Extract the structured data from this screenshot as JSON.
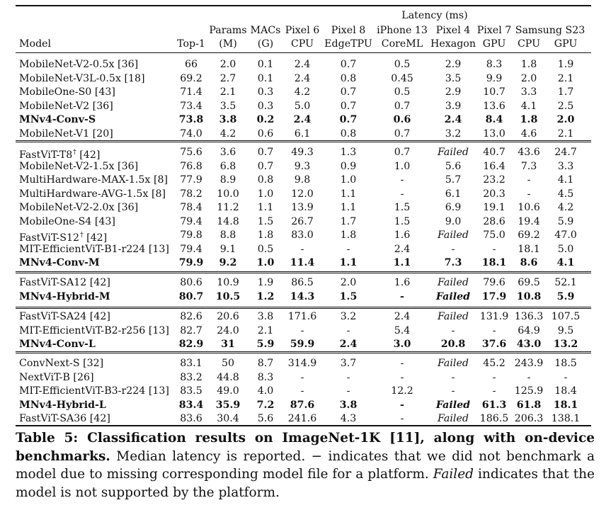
{
  "table": {
    "header": {
      "latency_group": "Latency (ms)",
      "top": {
        "params": "Params",
        "macs": "MACs",
        "pixel6": "Pixel 6",
        "pixel8": "Pixel 8",
        "iphone13": "iPhone 13",
        "pixel4": "Pixel 4",
        "pixel7": "Pixel 7",
        "samsung": "Samsung S23"
      },
      "sub": {
        "model": "Model",
        "top1": "Top-1",
        "params_unit": "(M)",
        "macs_unit": "(G)",
        "cpu": "CPU",
        "edgetpu": "EdgeTPU",
        "coreml": "CoreML",
        "hexagon": "Hexagon",
        "gpu_p7": "GPU",
        "cpu_s23": "CPU",
        "gpu_s23": "GPU"
      }
    },
    "rows": [
      {
        "model": "MobileNet-V2-0.5x [36]",
        "cells": [
          "66",
          "2.0",
          "0.1",
          "2.4",
          "0.7",
          "0.5",
          "2.9",
          "8.3",
          "1.8",
          "1.9"
        ]
      },
      {
        "model": "MobileNet-V3L-0.5x [18]",
        "cells": [
          "69.2",
          "2.7",
          "0.1",
          "2.4",
          "0.8",
          "0.45",
          "3.5",
          "9.9",
          "2.0",
          "2.1"
        ]
      },
      {
        "model": "MobileOne-S0 [43]",
        "cells": [
          "71.4",
          "2.1",
          "0.3",
          "4.2",
          "0.7",
          "0.5",
          "2.9",
          "10.7",
          "3.3",
          "1.7"
        ]
      },
      {
        "model": "MobileNet-V2 [36]",
        "cells": [
          "73.4",
          "3.5",
          "0.3",
          "5.0",
          "0.7",
          "0.7",
          "3.9",
          "13.6",
          "4.1",
          "2.5"
        ]
      },
      {
        "model": "MNv4-Conv-S",
        "bold": true,
        "cells": [
          "73.8",
          "3.8",
          "0.2",
          "2.4",
          "0.7",
          "0.6",
          "2.4",
          "8.4",
          "1.8",
          "2.0"
        ]
      },
      {
        "model": "MobileNet-V1 [20]",
        "cells": [
          "74.0",
          "4.2",
          "0.6",
          "6.1",
          "0.8",
          "0.7",
          "3.2",
          "13.0",
          "4.6",
          "2.1"
        ]
      },
      {
        "model": "FastViT-T8",
        "dagger": "†",
        "ref": " [42]",
        "cells": [
          "75.6",
          "3.6",
          "0.7",
          "49.3",
          "1.3",
          "0.7",
          "Failed",
          "40.7",
          "43.6",
          "24.7"
        ]
      },
      {
        "model": "MobileNet-V2-1.5x [36]",
        "cells": [
          "76.8",
          "6.8",
          "0.7",
          "9.3",
          "0.9",
          "1.0",
          "5.6",
          "16.4",
          "7.3",
          "3.3"
        ]
      },
      {
        "model": "MultiHardware-MAX-1.5x [8]",
        "cells": [
          "77.9",
          "8.9",
          "0.8",
          "9.8",
          "1.0",
          "-",
          "5.7",
          "23.2",
          "-",
          "4.1"
        ]
      },
      {
        "model": "MultiHardware-AVG-1.5x [8]",
        "cells": [
          "78.2",
          "10.0",
          "1.0",
          "12.0",
          "1.1",
          "-",
          "6.1",
          "20.3",
          "-",
          "4.5"
        ]
      },
      {
        "model": "MobileNet-V2-2.0x [36]",
        "cells": [
          "78.4",
          "11.2",
          "1.1",
          "13.9",
          "1.1",
          "1.5",
          "6.9",
          "19.1",
          "10.6",
          "4.2"
        ]
      },
      {
        "model": "MobileOne-S4 [43]",
        "cells": [
          "79.4",
          "14.8",
          "1.5",
          "26.7",
          "1.7",
          "1.5",
          "9.0",
          "28.6",
          "19.4",
          "5.9"
        ]
      },
      {
        "model": "FastViT-S12",
        "dagger": "†",
        "ref": " [42]",
        "cells": [
          "79.8",
          "8.8",
          "1.8",
          "83.0",
          "1.8",
          "1.6",
          "Failed",
          "75.0",
          "69.2",
          "47.0"
        ]
      },
      {
        "model": "MIT-EfficientViT-B1-r224 [13]",
        "cells": [
          "79.4",
          "9.1",
          "0.5",
          "-",
          "-",
          "2.4",
          "-",
          "-",
          "18.1",
          "5.0"
        ]
      },
      {
        "model": "MNv4-Conv-M",
        "bold": true,
        "cells": [
          "79.9",
          "9.2",
          "1.0",
          "11.4",
          "1.1",
          "1.1",
          "7.3",
          "18.1",
          "8.6",
          "4.1"
        ]
      },
      {
        "model": "FastViT-SA12 [42]",
        "cells": [
          "80.6",
          "10.9",
          "1.9",
          "86.5",
          "2.0",
          "1.6",
          "Failed",
          "79.6",
          "69.5",
          "52.1"
        ]
      },
      {
        "model": "MNv4-Hybrid-M",
        "bold": true,
        "cells": [
          "80.7",
          "10.5",
          "1.2",
          "14.3",
          "1.5",
          "-",
          "Failed",
          "17.9",
          "10.8",
          "5.9"
        ]
      },
      {
        "model": "FastViT-SA24 [42]",
        "cells": [
          "82.6",
          "20.6",
          "3.8",
          "171.6",
          "3.2",
          "2.4",
          "Failed",
          "131.9",
          "136.3",
          "107.5"
        ]
      },
      {
        "model": "MIT-EfficientViT-B2-r256 [13]",
        "cells": [
          "82.7",
          "24.0",
          "2.1",
          "-",
          "-",
          "5.4",
          "-",
          "-",
          "64.9",
          "9.5"
        ]
      },
      {
        "model": "MNv4-Conv-L",
        "bold": true,
        "cells": [
          "82.9",
          "31",
          "5.9",
          "59.9",
          "2.4",
          "3.0",
          "20.8",
          "37.6",
          "43.0",
          "13.2"
        ]
      },
      {
        "model": "ConvNext-S [32]",
        "cells": [
          "83.1",
          "50",
          "8.7",
          "314.9",
          "3.7",
          "-",
          "Failed",
          "45.2",
          "243.9",
          "18.5"
        ]
      },
      {
        "model": "NextViT-B [26]",
        "cells": [
          "83.2",
          "44.8",
          "8.3",
          "-",
          "-",
          "-",
          "-",
          "-",
          "-",
          "-"
        ]
      },
      {
        "model": "MIT-EfficientViT-B3-r224 [13]",
        "cells": [
          "83.5",
          "49.0",
          "4.0",
          "-",
          "-",
          "12.2",
          "-",
          "-",
          "125.9",
          "18.4"
        ]
      },
      {
        "model": "MNv4-Hybrid-L",
        "bold": true,
        "cells": [
          "83.4",
          "35.9",
          "7.2",
          "87.6",
          "3.8",
          "-",
          "Failed",
          "61.3",
          "61.8",
          "18.1"
        ]
      },
      {
        "model": "FastViT-SA36 [42]",
        "cells": [
          "83.6",
          "30.4",
          "5.6",
          "241.6",
          "4.3",
          "-",
          "Failed",
          "186.5",
          "206.3",
          "138.1"
        ]
      }
    ]
  },
  "caption": {
    "lead": "Table 5: Classification results on ImageNet-1K [11], along with on-device benchmarks.",
    "body1": " Median latency is reported. − indicates that we did not benchmark a model due to missing corresponding model file for a platform. ",
    "failed_word": "Failed",
    "body2": " indicates that the model is not supported by the platform."
  }
}
